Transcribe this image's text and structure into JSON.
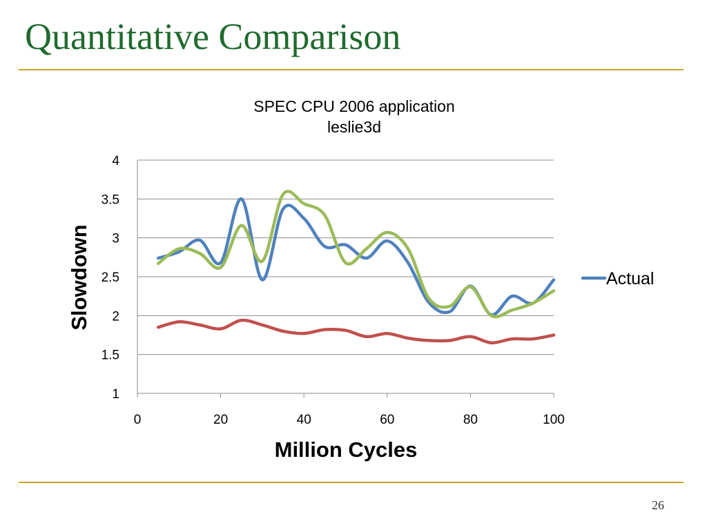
{
  "slide": {
    "title": "Quantitative Comparison",
    "page_number": "26",
    "rule_color": "#c9a227",
    "title_color": "#1f6b2e"
  },
  "chart_data": {
    "type": "line",
    "title": "SPEC CPU 2006 application",
    "subtitle": "leslie3d",
    "xlabel": "Million Cycles",
    "ylabel": "Slowdown",
    "xlim": [
      0,
      100
    ],
    "ylim": [
      1,
      4
    ],
    "xticks": [
      "0",
      "20",
      "40",
      "60",
      "80",
      "100"
    ],
    "yticks": [
      "1",
      "1.5",
      "2",
      "2.5",
      "3",
      "3.5",
      "4"
    ],
    "grid": true,
    "legend_position": "right",
    "x": [
      5,
      10,
      15,
      20,
      25,
      30,
      35,
      40,
      45,
      50,
      55,
      60,
      65,
      70,
      75,
      80,
      85,
      90,
      95,
      100
    ],
    "series": [
      {
        "name": "Actual",
        "color": "#4f81bd",
        "values": [
          2.74,
          2.82,
          2.97,
          2.68,
          3.5,
          2.46,
          3.37,
          3.25,
          2.89,
          2.91,
          2.74,
          2.96,
          2.68,
          2.17,
          2.05,
          2.38,
          2.01,
          2.25,
          2.16,
          2.46
        ]
      },
      {
        "name": "",
        "color": "#c0504d",
        "values": [
          1.85,
          1.92,
          1.88,
          1.83,
          1.94,
          1.88,
          1.8,
          1.77,
          1.82,
          1.81,
          1.73,
          1.77,
          1.71,
          1.68,
          1.68,
          1.73,
          1.65,
          1.7,
          1.7,
          1.75
        ]
      },
      {
        "name": "",
        "color": "#9bbb59",
        "values": [
          2.67,
          2.86,
          2.8,
          2.62,
          3.16,
          2.7,
          3.56,
          3.44,
          3.29,
          2.68,
          2.86,
          3.07,
          2.86,
          2.22,
          2.12,
          2.37,
          2.0,
          2.07,
          2.16,
          2.32
        ]
      }
    ]
  }
}
